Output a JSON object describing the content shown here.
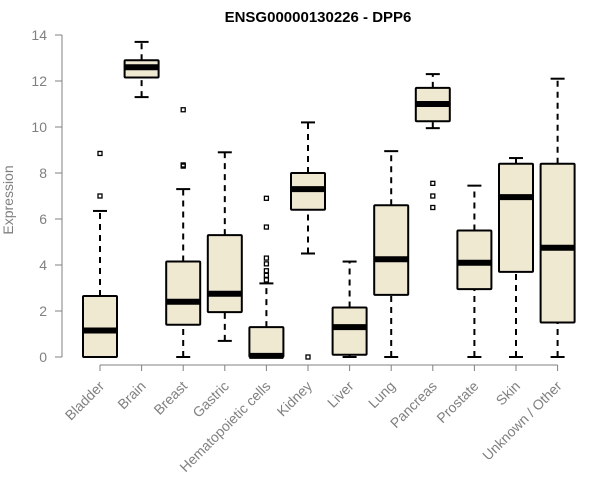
{
  "chart_data": {
    "type": "box",
    "title": "ENSG00000130226 - DPP6",
    "xlabel": "",
    "ylabel": "Expression",
    "ylim": [
      0,
      14
    ],
    "yticks": [
      0,
      2,
      4,
      6,
      8,
      10,
      12,
      14
    ],
    "categories": [
      "Bladder",
      "Brain",
      "Breast",
      "Gastric",
      "Hematopoietic cells",
      "Kidney",
      "Liver",
      "Lung",
      "Pancreas",
      "Prostate",
      "Skin",
      "Unknown / Other"
    ],
    "boxes": [
      {
        "category": "Bladder",
        "whisker_low": 0,
        "q1": 0,
        "median": 1.15,
        "q3": 2.65,
        "whisker_high": 6.35,
        "outliers": [
          7.0,
          8.85
        ]
      },
      {
        "category": "Brain",
        "whisker_low": 11.3,
        "q1": 12.15,
        "median": 12.6,
        "q3": 12.9,
        "whisker_high": 13.7,
        "outliers": []
      },
      {
        "category": "Breast",
        "whisker_low": 0,
        "q1": 1.4,
        "median": 2.4,
        "q3": 4.15,
        "whisker_high": 7.3,
        "outliers": [
          8.3,
          8.35,
          10.75
        ]
      },
      {
        "category": "Gastric",
        "whisker_low": 0.7,
        "q1": 1.95,
        "median": 2.75,
        "q3": 5.3,
        "whisker_high": 8.9,
        "outliers": []
      },
      {
        "category": "Hematopoietic cells",
        "whisker_low": 0,
        "q1": 0,
        "median": 0.05,
        "q3": 1.3,
        "whisker_high": 3.2,
        "outliers": [
          3.35,
          3.55,
          3.75,
          4.05,
          4.3,
          5.65,
          6.9
        ]
      },
      {
        "category": "Kidney",
        "whisker_low": 4.5,
        "q1": 6.4,
        "median": 7.3,
        "q3": 8.0,
        "whisker_high": 10.2,
        "outliers": [
          0
        ]
      },
      {
        "category": "Liver",
        "whisker_low": 0,
        "q1": 0.1,
        "median": 1.3,
        "q3": 2.15,
        "whisker_high": 4.15,
        "outliers": []
      },
      {
        "category": "Lung",
        "whisker_low": 0,
        "q1": 2.7,
        "median": 4.25,
        "q3": 6.6,
        "whisker_high": 8.95,
        "outliers": []
      },
      {
        "category": "Pancreas",
        "whisker_low": 9.95,
        "q1": 10.25,
        "median": 11.0,
        "q3": 11.7,
        "whisker_high": 12.3,
        "outliers": [
          6.5,
          7.0,
          7.55
        ]
      },
      {
        "category": "Prostate",
        "whisker_low": 0,
        "q1": 2.95,
        "median": 4.1,
        "q3": 5.5,
        "whisker_high": 7.45,
        "outliers": []
      },
      {
        "category": "Skin",
        "whisker_low": 0,
        "q1": 3.7,
        "median": 6.95,
        "q3": 8.4,
        "whisker_high": 8.65,
        "outliers": []
      },
      {
        "category": "Unknown / Other",
        "whisker_low": 0,
        "q1": 1.5,
        "median": 4.75,
        "q3": 8.4,
        "whisker_high": 12.1,
        "outliers": []
      }
    ],
    "grid": false,
    "box_fill": "#f0e9d2",
    "box_stroke": "#000000",
    "axis_color": "#808080"
  }
}
